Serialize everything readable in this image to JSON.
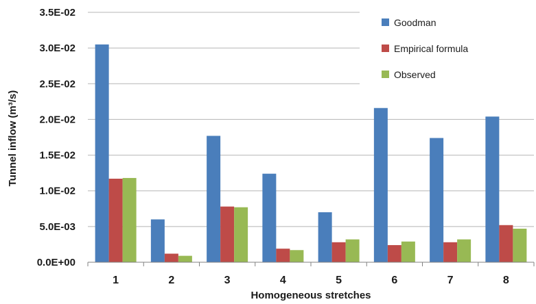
{
  "chart_data": {
    "type": "bar",
    "categories": [
      "1",
      "2",
      "3",
      "4",
      "5",
      "6",
      "7",
      "8"
    ],
    "series": [
      {
        "name": "Goodman",
        "color": "#4a7ebb",
        "values": [
          0.0305,
          0.006,
          0.0177,
          0.0124,
          0.007,
          0.0216,
          0.0174,
          0.0204
        ]
      },
      {
        "name": "Empirical formula",
        "color": "#be4b48",
        "values": [
          0.0117,
          0.0012,
          0.0078,
          0.0019,
          0.0028,
          0.0024,
          0.0028,
          0.0052
        ]
      },
      {
        "name": "Observed",
        "color": "#98b954",
        "values": [
          0.0118,
          0.0009,
          0.0077,
          0.0017,
          0.0032,
          0.0029,
          0.0032,
          0.0047
        ]
      }
    ],
    "xlabel": "Homogeneous stretches",
    "ylabel": "Tunnel inflow (m³/s)",
    "ylim": [
      0,
      0.035
    ],
    "yticks": [
      0,
      0.005,
      0.01,
      0.015,
      0.02,
      0.025,
      0.03,
      0.035
    ],
    "ytick_labels": [
      "0.0E+00",
      "5.0E-03",
      "1.0E-02",
      "1.5E-02",
      "2.0E-02",
      "2.5E-02",
      "3.0E-02",
      "3.5E-02"
    ],
    "grid": true,
    "legend_position": "top-right"
  }
}
